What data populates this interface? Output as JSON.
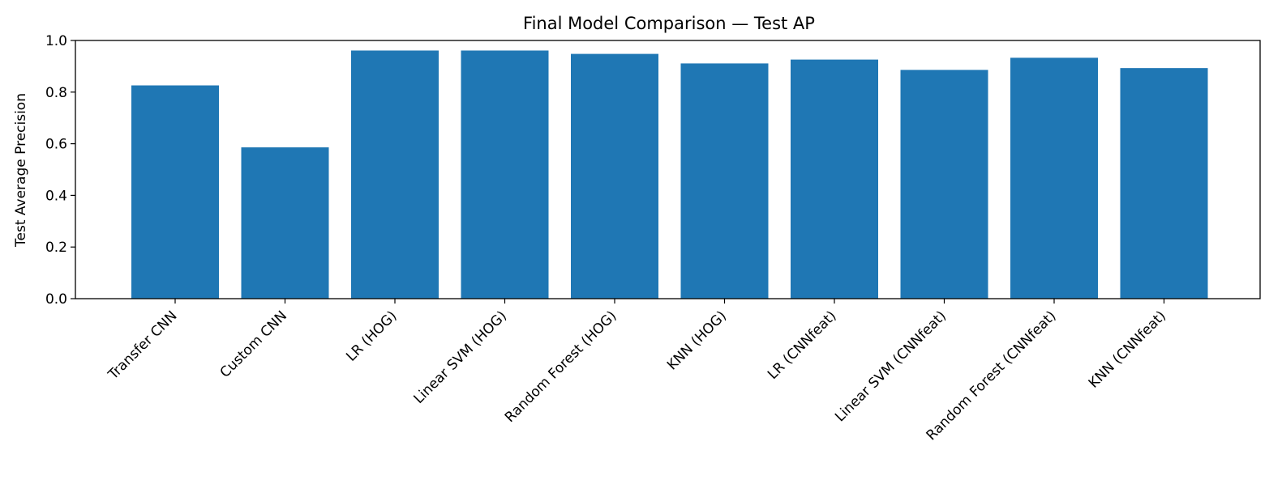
{
  "chart_data": {
    "type": "bar",
    "title": "Final Model Comparison — Test AP",
    "xlabel": "",
    "ylabel": "Test Average Precision",
    "categories": [
      "Transfer CNN",
      "Custom CNN",
      "LR (HOG)",
      "Linear SVM (HOG)",
      "Random Forest (HOG)",
      "KNN (HOG)",
      "LR (CNNfeat)",
      "Linear SVM (CNNfeat)",
      "Random Forest (CNNfeat)",
      "KNN (CNNfeat)"
    ],
    "values": [
      0.826,
      0.586,
      0.961,
      0.961,
      0.948,
      0.911,
      0.926,
      0.886,
      0.933,
      0.893
    ],
    "ylim": [
      0,
      1.0
    ],
    "yticks": [
      "0.0",
      "0.2",
      "0.4",
      "0.6",
      "0.8",
      "1.0"
    ],
    "bar_color": "#1f77b4",
    "grid": false,
    "legend": "none"
  }
}
